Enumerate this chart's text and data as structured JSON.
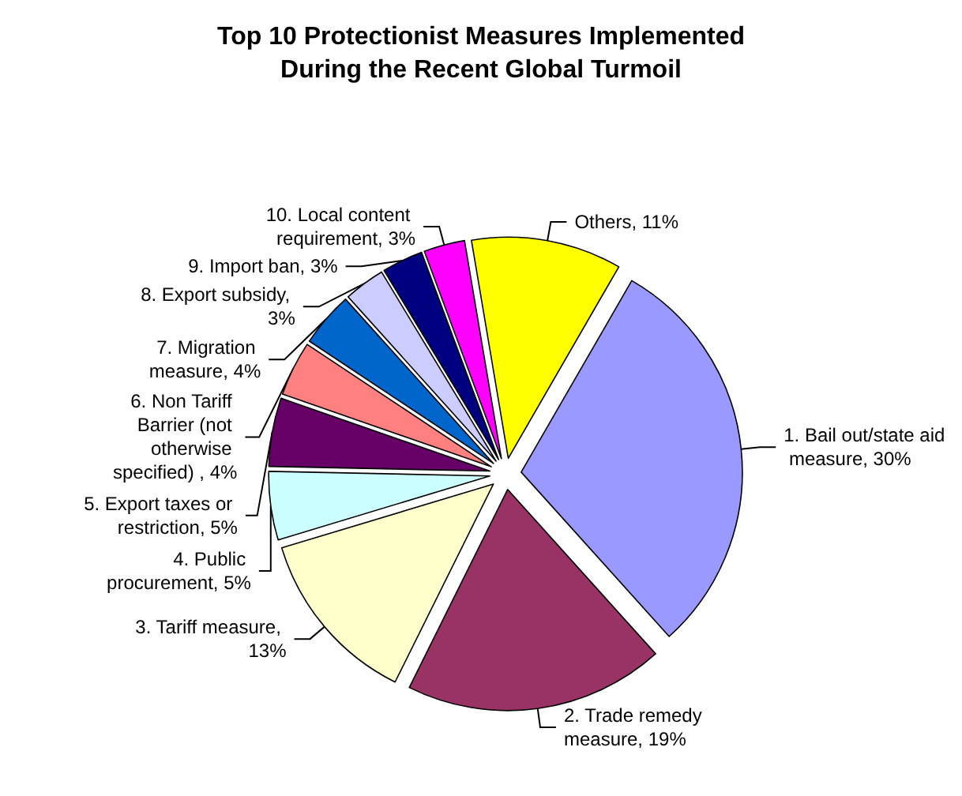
{
  "chart_data": {
    "type": "pie",
    "title": "Top 10 Protectionist Measures Implemented\nDuring the Recent Global Turmoil",
    "categories": [
      "1. Bail out/state aid measure, 30%",
      "2. Trade remedy measure, 19%",
      "3. Tariff measure, 13%",
      "4. Public procurement, 5%",
      "5. Export taxes or restriction, 5%",
      "6. Non Tariff Barrier (not otherwise specified) , 4%",
      "7. Migration measure, 4%",
      "8. Export subsidy, 3%",
      "9. Import ban, 3%",
      "10. Local content requirement, 3%",
      "Others, 11%"
    ],
    "values": [
      30,
      19,
      13,
      5,
      5,
      4,
      4,
      3,
      3,
      3,
      11
    ],
    "colors": [
      "#9999ff",
      "#993366",
      "#ffffcc",
      "#ccffff",
      "#660066",
      "#ff8080",
      "#0066cc",
      "#ccccff",
      "#000080",
      "#ff00ff",
      "#ffff00"
    ],
    "legend": false
  }
}
